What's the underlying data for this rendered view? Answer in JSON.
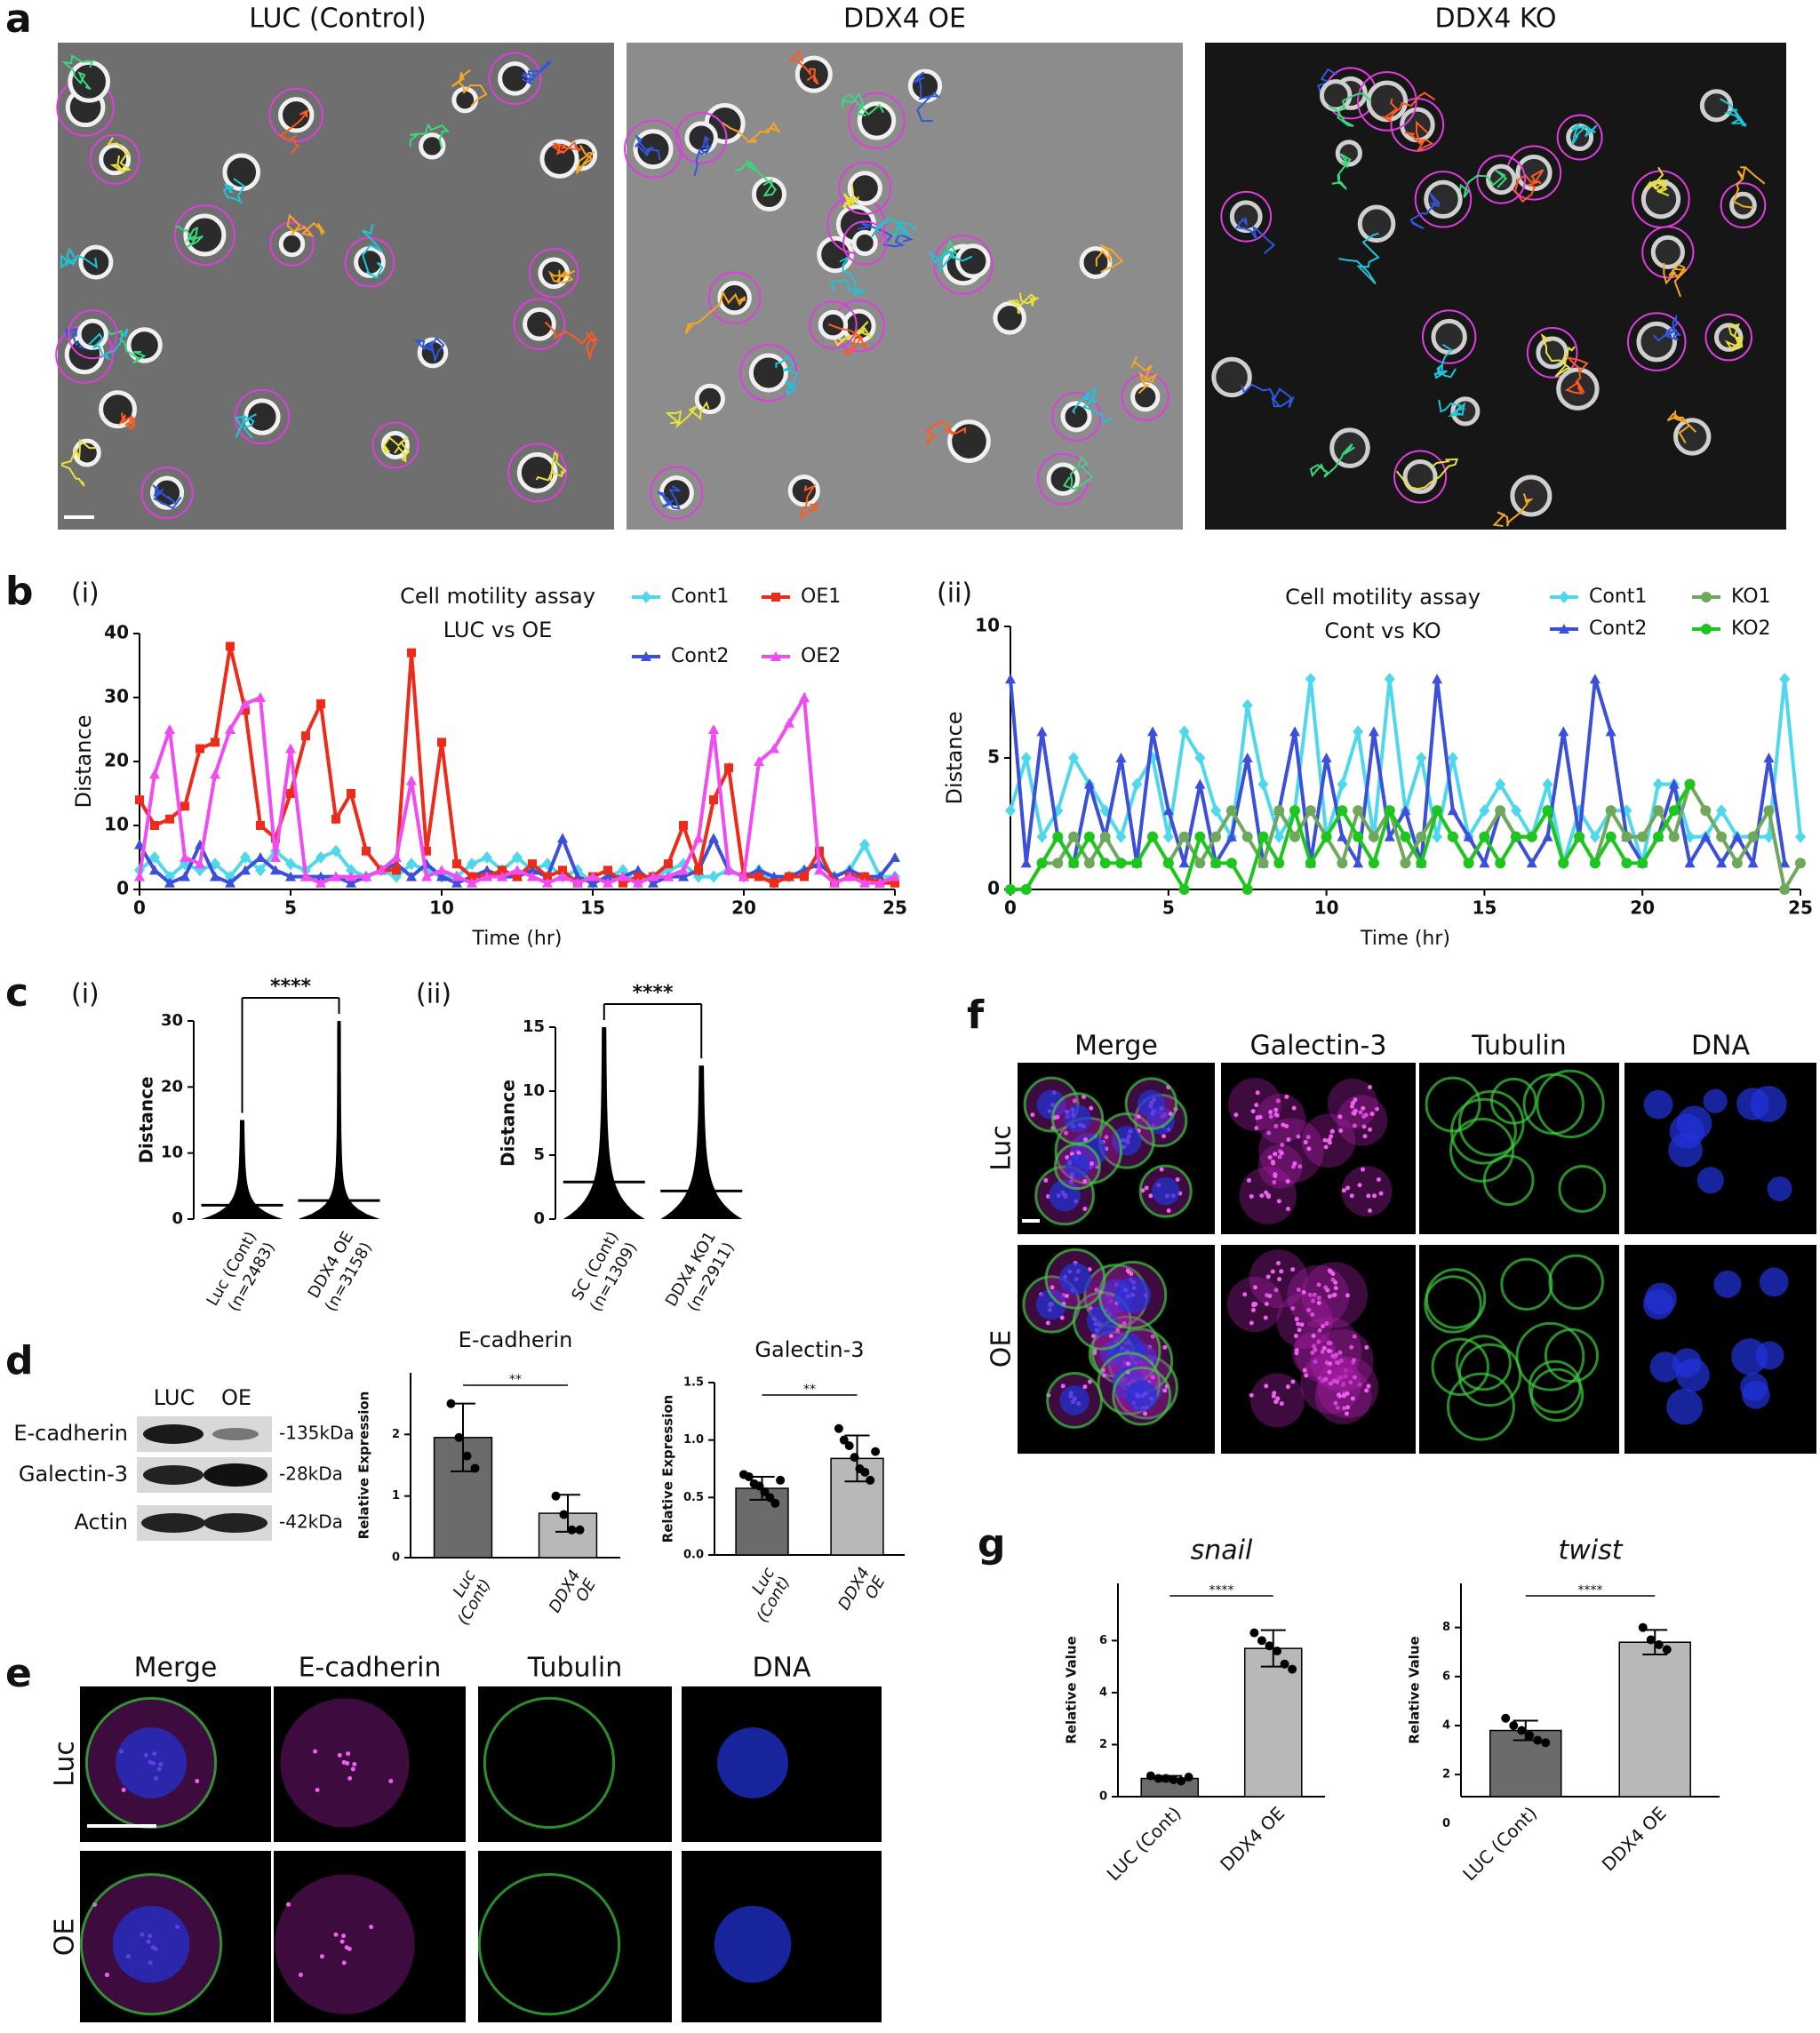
{
  "panel_letters": [
    "a",
    "b",
    "c",
    "d",
    "e",
    "f",
    "g"
  ],
  "subpanel_labels": [
    "(i)",
    "(ii)",
    "(i)",
    "(ii)"
  ],
  "panel_a_titles": [
    "LUC (Control)",
    "DDX4 OE",
    "DDX4 KO"
  ],
  "western_blot": {
    "lanes": [
      "LUC",
      "OE"
    ],
    "proteins": [
      "E-cadherin",
      "Galectin-3",
      "Actin"
    ],
    "sizes": [
      "-135kDa",
      "-28kDa",
      "-42kDa"
    ]
  },
  "panel_e": {
    "columns": [
      "Merge",
      "E-cadherin",
      "Tubulin",
      "DNA"
    ],
    "rows": [
      "Luc",
      "OE"
    ]
  },
  "panel_f": {
    "columns": [
      "Merge",
      "Galectin-3",
      "Tubulin",
      "DNA"
    ],
    "rows": [
      "Luc",
      "OE"
    ]
  },
  "chart_data": [
    {
      "type": "line",
      "title": "Cell motility assay",
      "subtitle": "LUC vs OE",
      "x_label": "Time (hr)",
      "y_label": "Distance",
      "x": [
        0,
        0.5,
        1,
        1.5,
        2,
        2.5,
        3,
        3.5,
        4,
        4.5,
        5,
        5.5,
        6,
        6.5,
        7,
        7.5,
        8,
        8.5,
        9,
        9.5,
        10,
        10.5,
        11,
        11.5,
        12,
        12.5,
        13,
        13.5,
        14,
        14.5,
        15,
        15.5,
        16,
        16.5,
        17,
        17.5,
        18,
        18.5,
        19,
        19.5,
        20,
        20.5,
        21,
        21.5,
        22,
        22.5,
        23,
        23.5,
        24,
        24.5,
        25
      ],
      "xlim": [
        0,
        25
      ],
      "xticks": [
        0,
        5,
        10,
        15,
        20,
        25
      ],
      "ylim": [
        0,
        40
      ],
      "yticks": [
        0,
        10,
        20,
        30,
        40
      ],
      "series": [
        {
          "name": "Cont1",
          "color": "#4fd8ec",
          "marker": "diamond",
          "values": [
            3,
            5,
            2,
            4,
            3,
            4,
            2,
            5,
            3,
            6,
            4,
            3,
            5,
            6,
            3,
            2,
            3,
            2,
            4,
            3,
            2,
            2,
            4,
            5,
            3,
            5,
            3,
            4,
            2,
            3,
            1,
            2,
            3,
            1,
            2,
            3,
            4,
            2,
            2,
            3,
            2,
            3,
            1,
            2,
            3,
            4,
            2,
            3,
            7,
            2,
            2
          ]
        },
        {
          "name": "Cont2",
          "color": "#3b4fd8",
          "marker": "triangle",
          "values": [
            7,
            3,
            1,
            2,
            7,
            2,
            1,
            3,
            5,
            3,
            2,
            2,
            2,
            2,
            1,
            2,
            3,
            4,
            2,
            4,
            2,
            1,
            2,
            3,
            2,
            2,
            3,
            2,
            8,
            2,
            1,
            2,
            2,
            3,
            1,
            2,
            2,
            3,
            8,
            3,
            2,
            3,
            2,
            2,
            3,
            4,
            2,
            3,
            2,
            2,
            5
          ]
        },
        {
          "name": "OE1",
          "color": "#ee2a1b",
          "marker": "square",
          "values": [
            14,
            10,
            11,
            13,
            22,
            23,
            38,
            28,
            10,
            8,
            15,
            24,
            29,
            11,
            15,
            6,
            3,
            3,
            37,
            6,
            23,
            4,
            2,
            2,
            3,
            2,
            4,
            2,
            3,
            1,
            2,
            3,
            1,
            2,
            2,
            4,
            10,
            3,
            14,
            19,
            2,
            2,
            1,
            2,
            2,
            6,
            1,
            2,
            2,
            1,
            1
          ]
        },
        {
          "name": "OE2",
          "color": "#f04cf0",
          "marker": "triangle",
          "values": [
            2,
            18,
            25,
            5,
            4,
            18,
            25,
            29,
            30,
            5,
            22,
            2,
            1,
            2,
            2,
            2,
            3,
            5,
            17,
            2,
            3,
            2,
            1,
            2,
            2,
            3,
            2,
            1,
            2,
            1,
            2,
            1,
            2,
            1,
            2,
            2,
            3,
            8,
            25,
            3,
            2,
            20,
            22,
            26,
            30,
            3,
            1,
            2,
            1,
            1,
            2
          ]
        }
      ]
    },
    {
      "type": "line",
      "title": "Cell motility assay",
      "subtitle": "Cont vs KO",
      "x_label": "Time (hr)",
      "y_label": "Distance",
      "x": [
        0,
        0.5,
        1,
        1.5,
        2,
        2.5,
        3,
        3.5,
        4,
        4.5,
        5,
        5.5,
        6,
        6.5,
        7,
        7.5,
        8,
        8.5,
        9,
        9.5,
        10,
        10.5,
        11,
        11.5,
        12,
        12.5,
        13,
        13.5,
        14,
        14.5,
        15,
        15.5,
        16,
        16.5,
        17,
        17.5,
        18,
        18.5,
        19,
        19.5,
        20,
        20.5,
        21,
        21.5,
        22,
        22.5,
        23,
        23.5,
        24,
        24.5,
        25
      ],
      "xlim": [
        0,
        25
      ],
      "xticks": [
        0,
        5,
        10,
        15,
        20,
        25
      ],
      "ylim": [
        0,
        10
      ],
      "yticks": [
        0,
        5,
        10
      ],
      "series": [
        {
          "name": "Cont1",
          "color": "#4fd8ec",
          "marker": "diamond",
          "values": [
            3,
            5,
            2,
            3,
            5,
            4,
            3,
            2,
            4,
            5,
            2,
            6,
            5,
            3,
            2,
            7,
            4,
            2,
            3,
            8,
            2,
            4,
            6,
            2,
            8,
            3,
            5,
            2,
            5,
            2,
            3,
            4,
            3,
            2,
            4,
            1,
            3,
            2,
            3,
            3,
            1,
            4,
            4,
            2,
            2,
            3,
            2,
            2,
            2,
            8,
            2
          ]
        },
        {
          "name": "Cont2",
          "color": "#3b4fd8",
          "marker": "triangle",
          "values": [
            8,
            1,
            6,
            2,
            1,
            4,
            2,
            5,
            1,
            6,
            3,
            1,
            4,
            1,
            2,
            5,
            1,
            3,
            6,
            1,
            5,
            2,
            1,
            6,
            2,
            3,
            1,
            8,
            3,
            2,
            1,
            3,
            2,
            1,
            2,
            6,
            2,
            8,
            6,
            2,
            1,
            2,
            4,
            1,
            2,
            1,
            2,
            1,
            5,
            1,
            null
          ]
        },
        {
          "name": "KO1",
          "color": "#6fa85a",
          "marker": "circle",
          "values": [
            0,
            0,
            1,
            1,
            2,
            1,
            2,
            1,
            1,
            2,
            1,
            2,
            1,
            2,
            3,
            2,
            1,
            3,
            2,
            3,
            2,
            1,
            3,
            2,
            3,
            1,
            2,
            3,
            2,
            1,
            2,
            3,
            2,
            2,
            3,
            1,
            2,
            1,
            3,
            2,
            2,
            3,
            2,
            4,
            3,
            2,
            1,
            2,
            3,
            0,
            1
          ]
        },
        {
          "name": "KO2",
          "color": "#1ec51e",
          "marker": "circle",
          "values": [
            0,
            0,
            1,
            2,
            1,
            2,
            1,
            1,
            1,
            2,
            1,
            0,
            2,
            1,
            1,
            0,
            2,
            1,
            3,
            1,
            2,
            3,
            2,
            1,
            3,
            2,
            1,
            3,
            2,
            1,
            2,
            1,
            2,
            2,
            3,
            1,
            2,
            1,
            2,
            1,
            1,
            2,
            3,
            4,
            null,
            null,
            null,
            null,
            null,
            null,
            null
          ]
        }
      ]
    },
    {
      "type": "distribution",
      "y_label": "Distance",
      "categories": [
        [
          "Luc (Cont)",
          "(n=2483)"
        ],
        [
          "DDX4 OE",
          "(n=3158)"
        ]
      ],
      "max": [
        15,
        30
      ],
      "means": [
        2.1,
        2.8
      ],
      "ylim": [
        0,
        30
      ],
      "yticks": [
        0,
        10,
        20,
        30
      ],
      "significance": "****",
      "color": "#000000"
    },
    {
      "type": "distribution",
      "y_label": "Distance",
      "categories": [
        [
          "SC (Cont)",
          "(n=1309)"
        ],
        [
          "DDX4 KO1",
          "(n=2911)"
        ]
      ],
      "max": [
        15,
        12
      ],
      "means": [
        2.9,
        2.2
      ],
      "ylim": [
        0,
        15
      ],
      "yticks": [
        0,
        5,
        10,
        15
      ],
      "significance": "****",
      "color": "#000000"
    },
    {
      "type": "bar",
      "title": "E-cadherin",
      "y_label": "Relative Expression",
      "categories": [
        [
          "Luc",
          "(Cont)"
        ],
        [
          "DDX4",
          "OE"
        ]
      ],
      "values": [
        1.95,
        0.72
      ],
      "errors": [
        0.55,
        0.3
      ],
      "points": [
        [
          2.5,
          1.95,
          1.65,
          1.45
        ],
        [
          1.0,
          0.7,
          0.45,
          0.45
        ]
      ],
      "colors": [
        "#6b6b6b",
        "#b8b8b8"
      ],
      "ylim": [
        0,
        3
      ],
      "yticks": [
        0,
        1,
        2
      ],
      "significance": "**"
    },
    {
      "type": "bar",
      "title": "Galectin-3",
      "y_label": "Relative Expression",
      "categories": [
        [
          "Luc",
          "(Cont)"
        ],
        [
          "DDX4",
          "OE"
        ]
      ],
      "values": [
        0.58,
        0.84
      ],
      "errors": [
        0.1,
        0.2
      ],
      "points": [
        [
          0.7,
          0.68,
          0.62,
          0.6,
          0.55,
          0.5,
          0.45,
          0.65
        ],
        [
          1.1,
          1.0,
          0.95,
          0.85,
          0.75,
          0.72,
          0.65,
          0.9
        ]
      ],
      "colors": [
        "#6b6b6b",
        "#b8b8b8"
      ],
      "ylim": [
        0,
        1.5
      ],
      "yticks": [
        {
          "value": 0,
          "label": "0.0"
        },
        0.5,
        {
          "value": 1,
          "label": "1.0"
        },
        1.5
      ],
      "significance": "**"
    },
    {
      "type": "bar",
      "title": "snail",
      "y_label": "Relative Value",
      "categories": [
        [
          "LUC (Cont)"
        ],
        [
          "DDX4 OE"
        ]
      ],
      "values": [
        0.7,
        5.7
      ],
      "errors": [
        0.1,
        0.7
      ],
      "points": [
        [
          0.8,
          0.7,
          0.7,
          0.65,
          0.6,
          0.75
        ],
        [
          6.3,
          6.0,
          5.8,
          5.6,
          5.1,
          4.9
        ]
      ],
      "colors": [
        "#6b6b6b",
        "#b8b8b8"
      ],
      "ylim": [
        0,
        8.2
      ],
      "yticks": [
        0,
        2,
        4,
        6
      ],
      "significance": "****"
    },
    {
      "type": "bar",
      "title": "twist",
      "y_label": "Relative Value",
      "categories": [
        [
          "LUC (Cont)"
        ],
        [
          "DDX4 OE"
        ]
      ],
      "values": [
        3.8,
        7.4
      ],
      "errors": [
        0.4,
        0.5
      ],
      "points": [
        [
          4.3,
          4.0,
          3.8,
          3.6,
          3.4,
          3.3
        ],
        [
          8.0,
          7.5,
          7.3,
          7.1
        ]
      ],
      "colors": [
        "#6b6b6b",
        "#b8b8b8"
      ],
      "ylim": [
        1.1,
        9.8
      ],
      "yticks": [
        0,
        2,
        4,
        6,
        8
      ],
      "significance": "****"
    }
  ]
}
